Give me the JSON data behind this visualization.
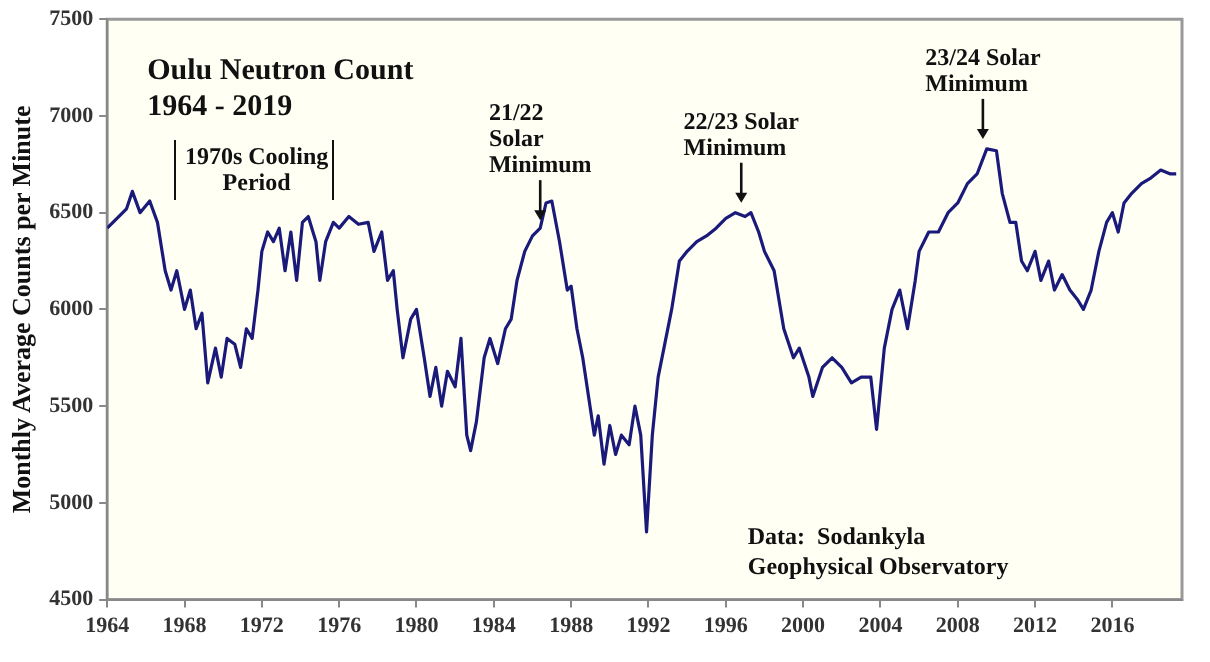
{
  "chart_data": {
    "type": "line",
    "title": "Oulu Neutron Count\n1964 - 2019",
    "ylabel": "Monthly Average Counts per Minute",
    "x": [
      1964.0,
      1965.0,
      1965.3,
      1965.7,
      1966.2,
      1966.6,
      1967.0,
      1967.3,
      1967.6,
      1968.0,
      1968.3,
      1968.6,
      1968.9,
      1969.2,
      1969.6,
      1969.9,
      1970.2,
      1970.6,
      1970.9,
      1971.2,
      1971.5,
      1971.8,
      1972.0,
      1972.3,
      1972.6,
      1972.9,
      1973.2,
      1973.5,
      1973.8,
      1974.1,
      1974.4,
      1974.8,
      1975.0,
      1975.3,
      1975.7,
      1976.0,
      1976.5,
      1977.0,
      1977.5,
      1977.8,
      1978.2,
      1978.5,
      1978.8,
      1979.0,
      1979.3,
      1979.7,
      1980.0,
      1980.4,
      1980.7,
      1981.0,
      1981.3,
      1981.6,
      1982.0,
      1982.3,
      1982.6,
      1982.8,
      1983.1,
      1983.5,
      1983.8,
      1984.2,
      1984.6,
      1984.9,
      1985.2,
      1985.6,
      1986.0,
      1986.4,
      1986.7,
      1987.0,
      1987.4,
      1987.8,
      1988.0,
      1988.3,
      1988.6,
      1988.9,
      1989.2,
      1989.4,
      1989.7,
      1990.0,
      1990.3,
      1990.6,
      1991.0,
      1991.3,
      1991.6,
      1991.9,
      1992.2,
      1992.5,
      1992.8,
      1993.2,
      1993.6,
      1994.0,
      1994.5,
      1995.0,
      1995.5,
      1996.0,
      1996.5,
      1997.0,
      1997.3,
      1997.7,
      1998.0,
      1998.5,
      1999.0,
      1999.5,
      1999.8,
      2000.3,
      2000.5,
      2001.0,
      2001.5,
      2002.0,
      2002.5,
      2003.0,
      2003.5,
      2003.8,
      2004.2,
      2004.6,
      2005.0,
      2005.4,
      2005.8,
      2006.0,
      2006.5,
      2007.0,
      2007.5,
      2008.0,
      2008.5,
      2009.0,
      2009.5,
      2010.0,
      2010.3,
      2010.7,
      2011.0,
      2011.3,
      2011.6,
      2012.0,
      2012.3,
      2012.7,
      2013.0,
      2013.4,
      2013.8,
      2014.2,
      2014.5,
      2014.9,
      2015.3,
      2015.7,
      2016.0,
      2016.3,
      2016.6,
      2017.0,
      2017.5,
      2018.0,
      2018.5,
      2019.0,
      2019.3
    ],
    "series": [
      {
        "color": "#1a1a7a",
        "values": [
          6420,
          6520,
          6610,
          6500,
          6560,
          6450,
          6200,
          6100,
          6200,
          6000,
          6100,
          5900,
          5980,
          5620,
          5800,
          5650,
          5850,
          5820,
          5700,
          5900,
          5850,
          6100,
          6300,
          6400,
          6350,
          6420,
          6200,
          6400,
          6150,
          6450,
          6480,
          6350,
          6150,
          6350,
          6450,
          6420,
          6480,
          6440,
          6450,
          6300,
          6400,
          6150,
          6200,
          6000,
          5750,
          5950,
          6000,
          5750,
          5550,
          5700,
          5500,
          5680,
          5600,
          5850,
          5350,
          5270,
          5420,
          5750,
          5850,
          5720,
          5900,
          5950,
          6150,
          6300,
          6380,
          6420,
          6550,
          6560,
          6350,
          6100,
          6120,
          5900,
          5750,
          5550,
          5350,
          5450,
          5200,
          5400,
          5250,
          5350,
          5300,
          5500,
          5350,
          4850,
          5350,
          5650,
          5800,
          6000,
          6250,
          6300,
          6350,
          6380,
          6420,
          6470,
          6500,
          6480,
          6500,
          6400,
          6300,
          6200,
          5900,
          5750,
          5800,
          5650,
          5550,
          5700,
          5750,
          5700,
          5620,
          5650,
          5650,
          5380,
          5800,
          6000,
          6100,
          5900,
          6150,
          6300,
          6400,
          6400,
          6500,
          6550,
          6650,
          6700,
          6830,
          6820,
          6600,
          6450,
          6450,
          6250,
          6200,
          6300,
          6150,
          6250,
          6100,
          6180,
          6100,
          6050,
          6000,
          6100,
          6300,
          6450,
          6500,
          6400,
          6550,
          6600,
          6650,
          6680,
          6720,
          6700,
          6700
        ]
      }
    ],
    "xlim": [
      1964,
      2019.6
    ],
    "xticks": [
      1964,
      1968,
      1972,
      1976,
      1980,
      1984,
      1988,
      1992,
      1996,
      2000,
      2004,
      2008,
      2012,
      2016
    ],
    "ylim": [
      4500,
      7500
    ],
    "yticks": [
      4500,
      5000,
      5500,
      6000,
      6500,
      7000,
      7500
    ],
    "grid": false,
    "legend": false,
    "marker": "none",
    "line_style": "solid",
    "annotations": [
      "1970s Cooling\nPeriod",
      {
        "text": "21/22\nSolar\nMinimum",
        "x": 1986.4,
        "y": 6420
      },
      {
        "text": "22/23 Solar\nMinimum",
        "x": 1996.8,
        "y": 6510
      },
      {
        "text": "23/24 Solar\nMinimum",
        "x": 2009.3,
        "y": 6840
      },
      "Data:  Sodankyla\nGeophysical Observatory"
    ]
  }
}
